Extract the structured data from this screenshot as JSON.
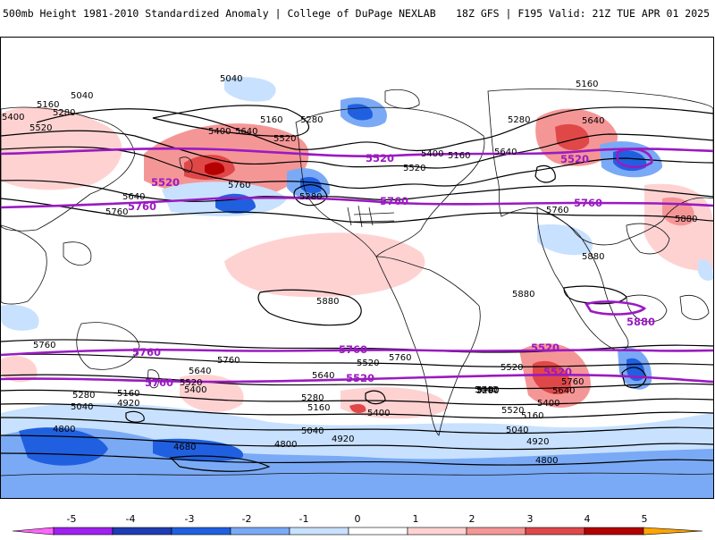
{
  "header": {
    "title": "500mb Height 1981-2010 Standardized Anomaly | College of DuPage NEXLAB",
    "run_info": "18Z GFS | F195 Valid: 21Z TUE APR 01 2025"
  },
  "contour_labels": {
    "black": [
      "5040",
      "5040",
      "5160",
      "5280",
      "5400",
      "5520",
      "5160",
      "5280",
      "5640",
      "5760",
      "5760",
      "5640",
      "5400",
      "5520",
      "5160",
      "5280",
      "5280",
      "5640",
      "5160",
      "5400",
      "5520",
      "5640",
      "5760",
      "5880",
      "5880",
      "5880",
      "5880",
      "5760",
      "5760",
      "5640",
      "5520",
      "5400",
      "5280",
      "5160",
      "5040",
      "4920",
      "4800",
      "4680",
      "5640",
      "5520",
      "5400",
      "5280",
      "5160",
      "5040",
      "4920",
      "4800",
      "5760",
      "5520",
      "5400",
      "5640",
      "5760",
      "5640",
      "5520",
      "5400",
      "5280",
      "5160",
      "5040",
      "4920",
      "4800"
    ],
    "purple": [
      "5520",
      "5760",
      "5520",
      "5760",
      "5520",
      "5760",
      "5880",
      "5760",
      "5760",
      "5520",
      "5760",
      "5520",
      "5520"
    ]
  },
  "colors": {
    "purple_contour": "#9a1ac2",
    "black_contour": "#000000",
    "coastline": "#111111",
    "scale": [
      "#ff66ff",
      "#a020f0",
      "#1e3cb4",
      "#2060e0",
      "#7aaaf5",
      "#c8e1ff",
      "#ffffff",
      "#ffd2d2",
      "#f59696",
      "#e04848",
      "#b40000",
      "#ffa500"
    ]
  },
  "colorbar": {
    "ticks": [
      "-5",
      "-4",
      "-3",
      "-2",
      "-1",
      "0",
      "1",
      "2",
      "3",
      "4",
      "5"
    ]
  }
}
